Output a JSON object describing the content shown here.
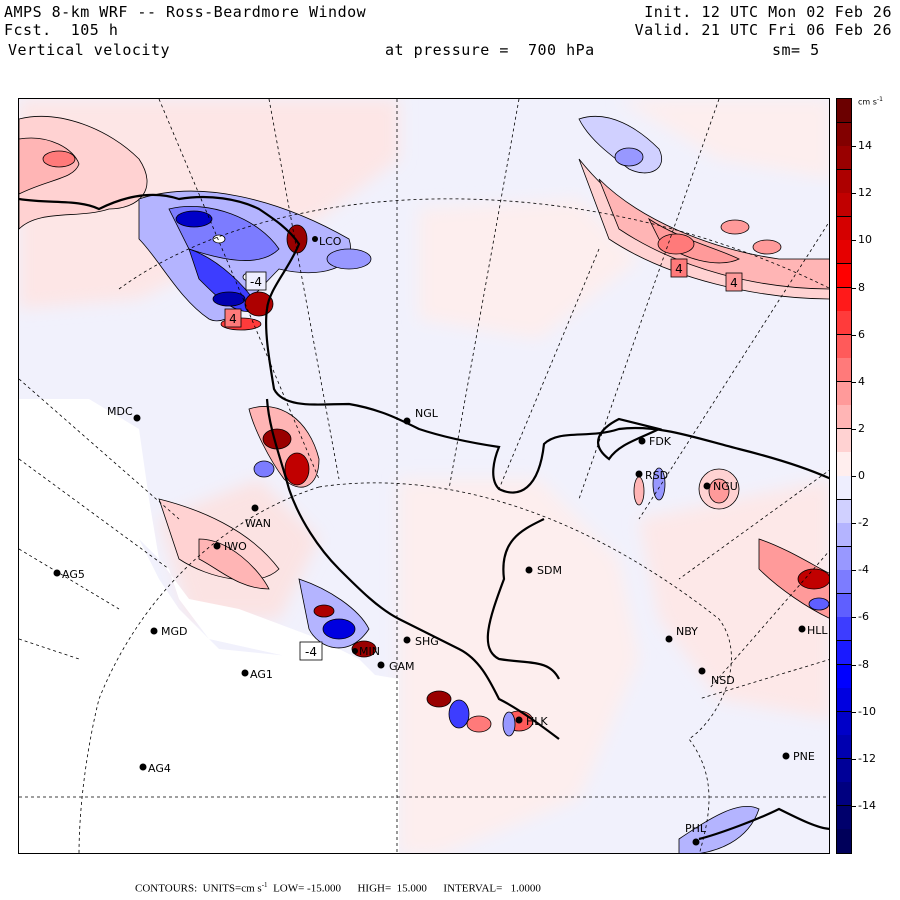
{
  "header": {
    "title": "AMPS 8-km WRF -- Ross-Beardmore Window",
    "forecast": "Fcst.  105 h",
    "field": "Vertical velocity",
    "level": "at pressure =  700 hPa",
    "init": "Init. 12 UTC Mon 02 Feb 26",
    "valid": "Valid. 21 UTC Fri 06 Feb 26",
    "smoothing": "sm= 5"
  },
  "colorbar": {
    "units": "cm s",
    "units_exp": "-1",
    "min": -16,
    "max": 16,
    "interval": 2,
    "tick_labels": [
      "14",
      "12",
      "10",
      "8",
      "6",
      "4",
      "2",
      "0",
      "-2",
      "-4",
      "-6",
      "-8",
      "-10",
      "-12",
      "-14"
    ],
    "tick_values": [
      14,
      12,
      10,
      8,
      6,
      4,
      2,
      0,
      -2,
      -4,
      -6,
      -8,
      -10,
      -12,
      -14
    ],
    "colors_top_to_bottom": [
      "#6b0000",
      "#820000",
      "#990000",
      "#ad0000",
      "#c10000",
      "#d50000",
      "#e60000",
      "#ff0000",
      "#ff1a1a",
      "#ff3b3b",
      "#ff5a5a",
      "#ff7a7a",
      "#ff9a9a",
      "#ffb5b5",
      "#ffd2d2",
      "#ffeeee",
      "#eeeefe",
      "#d0d0ff",
      "#b4b4ff",
      "#9898ff",
      "#7c7cff",
      "#5f5fff",
      "#3d3dff",
      "#1a1aff",
      "#0000ff",
      "#0000e0",
      "#0000c8",
      "#0000b0",
      "#000098",
      "#000080",
      "#00006c",
      "#00005a"
    ]
  },
  "footer": {
    "prefix": "CONTOURS:  UNITS=cm s",
    "units_exp": "-1",
    "rest": "  LOW= -15.000      HIGH=  15.000      INTERVAL=   1.0000"
  },
  "map": {
    "stations": [
      {
        "id": "MDC",
        "label": "MDC"
      },
      {
        "id": "NGL",
        "label": "NGL"
      },
      {
        "id": "FDK",
        "label": "FDK"
      },
      {
        "id": "RSD",
        "label": "RSD"
      },
      {
        "id": "NGU",
        "label": "NGU"
      },
      {
        "id": "WAN",
        "label": "WAN"
      },
      {
        "id": "IWO",
        "label": "IWO"
      },
      {
        "id": "AG5",
        "label": "AG5"
      },
      {
        "id": "SDM",
        "label": "SDM"
      },
      {
        "id": "MGD",
        "label": "MGD"
      },
      {
        "id": "NBY",
        "label": "NBY"
      },
      {
        "id": "SHG",
        "label": "SHG"
      },
      {
        "id": "GAM",
        "label": "GAM"
      },
      {
        "id": "AG1",
        "label": "AG1"
      },
      {
        "id": "NSD",
        "label": "NSD"
      },
      {
        "id": "HLK",
        "label": "HLK"
      },
      {
        "id": "PNE",
        "label": "PNE"
      },
      {
        "id": "AG4",
        "label": "AG4"
      },
      {
        "id": "PHL",
        "label": "PHL"
      },
      {
        "id": "MIN",
        "label": "MIN"
      },
      {
        "id": "LCO",
        "label": "LCO"
      },
      {
        "id": "HLL",
        "label": "HLL"
      }
    ],
    "contour_labels": [
      {
        "id": "lbl-neg4-north",
        "value": "-4"
      },
      {
        "id": "lbl-pos4-north",
        "value": "4"
      },
      {
        "id": "lbl-pos4-east-a",
        "value": "4"
      },
      {
        "id": "lbl-pos4-east-b",
        "value": "4"
      },
      {
        "id": "lbl-neg4-south",
        "value": "-4"
      }
    ]
  }
}
